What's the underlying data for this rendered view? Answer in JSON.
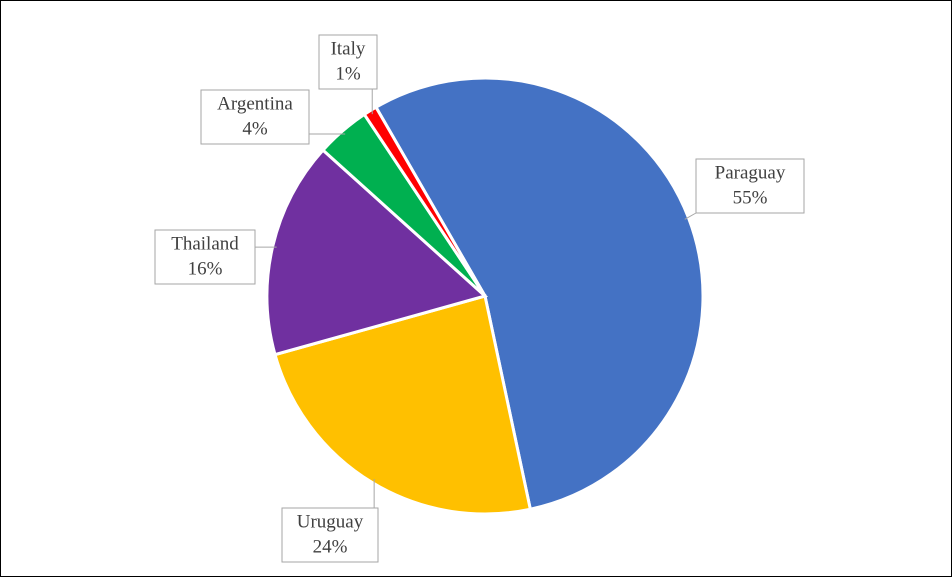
{
  "chart_data": {
    "type": "pie",
    "categories": [
      "Paraguay",
      "Uruguay",
      "Thailand",
      "Argentina",
      "Italy"
    ],
    "values": [
      55,
      24,
      16,
      4,
      1
    ],
    "value_labels": [
      "55%",
      "24%",
      "16%",
      "4%",
      "1%"
    ],
    "colors": [
      "#4472c4",
      "#ffc000",
      "#7030a0",
      "#00b050",
      "#ff0000"
    ]
  }
}
